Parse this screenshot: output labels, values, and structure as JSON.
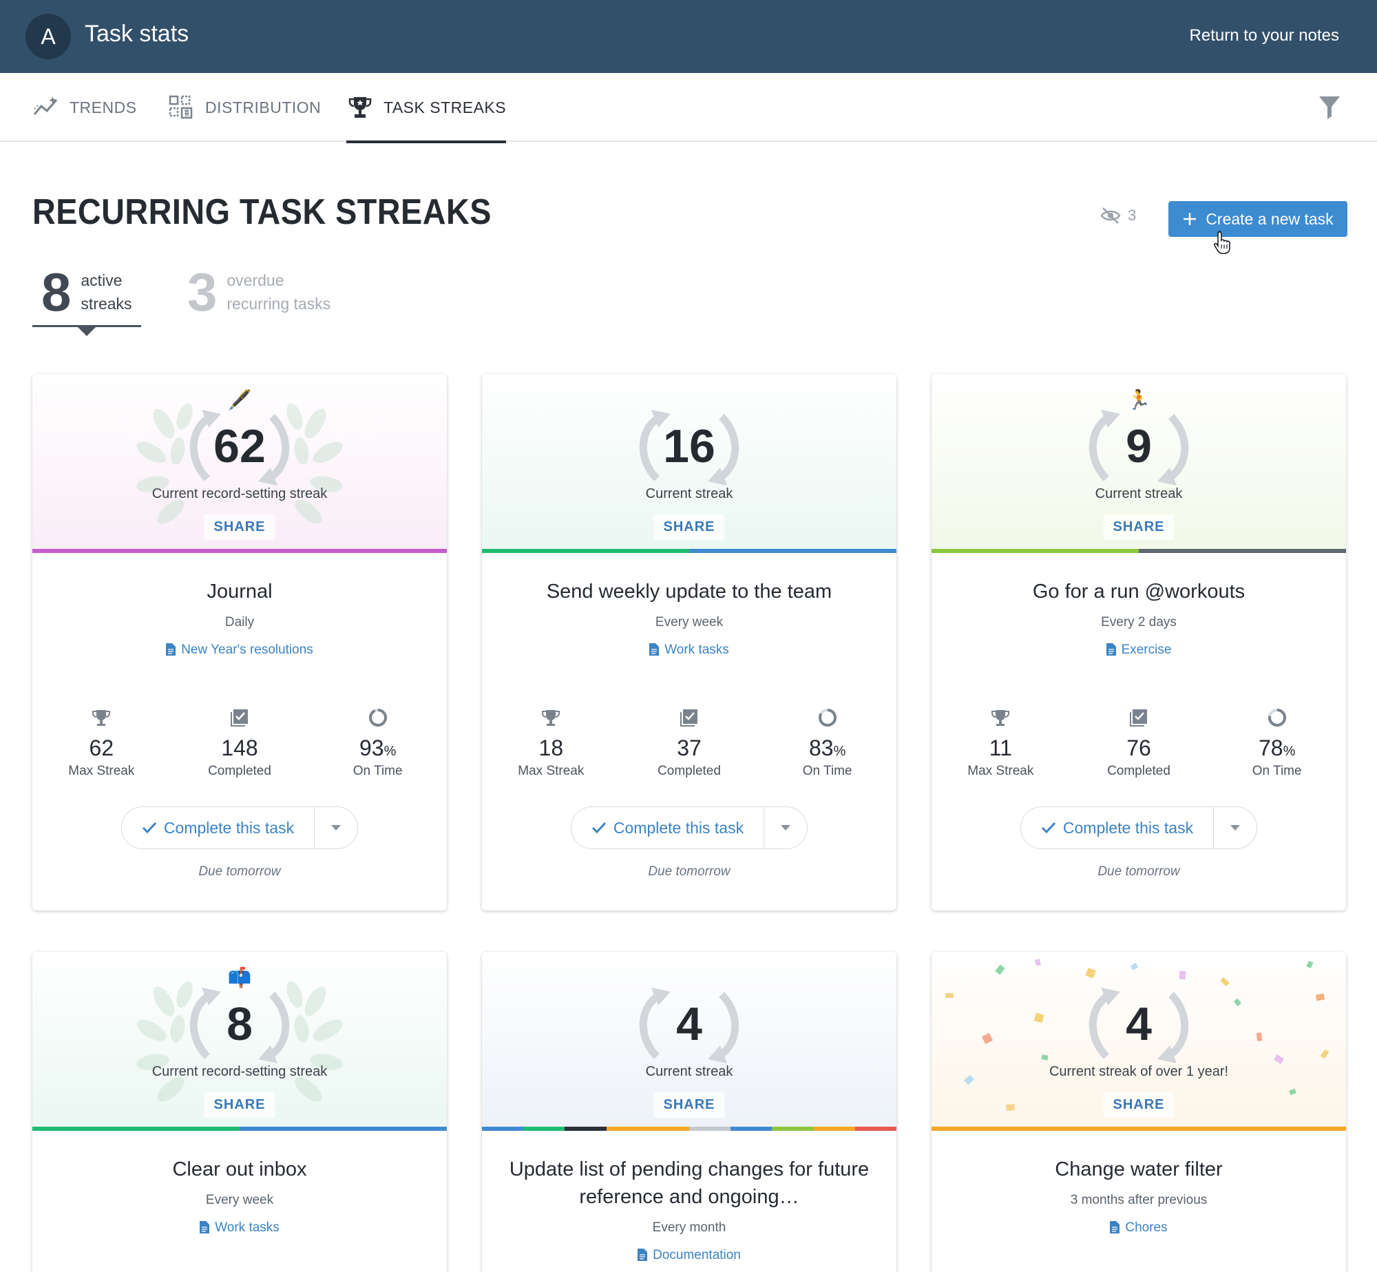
{
  "header": {
    "avatar_letter": "A",
    "title": "Task stats",
    "return_label": "Return to your notes"
  },
  "tabs": [
    {
      "label": "TRENDS",
      "icon": "trends-icon"
    },
    {
      "label": "DISTRIBUTION",
      "icon": "distribution-icon"
    },
    {
      "label": "TASK STREAKS",
      "icon": "trophy-icon",
      "active": true
    }
  ],
  "section": {
    "title": "RECURRING TASK STREAKS",
    "hidden_count": "3",
    "create_label": "Create a new task"
  },
  "counters": {
    "active": {
      "value": "8",
      "line1": "active",
      "line2": "streaks"
    },
    "overdue": {
      "value": "3",
      "line1": "overdue",
      "line2": "recurring tasks"
    }
  },
  "labels": {
    "share": "SHARE",
    "max_streak": "Max Streak",
    "completed": "Completed",
    "on_time": "On Time",
    "percent": "%",
    "complete_task": "Complete this task",
    "due": "Due tomorrow"
  },
  "cards": [
    {
      "streak": "62",
      "streak_label": "Current record-setting streak",
      "emoji": "🖋️",
      "title": "Journal",
      "frequency": "Daily",
      "note": "New Year's resolutions",
      "max_streak": "62",
      "completed": "148",
      "on_time": "93",
      "colors": [
        "#c85ccf"
      ],
      "bg": "#f9edf7"
    },
    {
      "streak": "16",
      "streak_label": "Current streak",
      "emoji": "",
      "title": "Send weekly update to the team",
      "frequency": "Every week",
      "note": "Work tasks",
      "max_streak": "18",
      "completed": "37",
      "on_time": "83",
      "colors": [
        "#1fbc71",
        "#3d8bd1"
      ],
      "bg": "#eaf7f2"
    },
    {
      "streak": "9",
      "streak_label": "Current streak",
      "emoji": "🏃",
      "title": "Go for a run @workouts",
      "frequency": "Every 2 days",
      "note": "Exercise",
      "max_streak": "11",
      "completed": "76",
      "on_time": "78",
      "colors": [
        "#8cc63f",
        "#5f6971"
      ],
      "bg": "#f2f8e8"
    },
    {
      "streak": "8",
      "streak_label": "Current record-setting streak",
      "emoji": "📫",
      "title": "Clear out inbox",
      "frequency": "Every week",
      "note": "Work tasks",
      "colors": [
        "#1fbc71",
        "#3d8bd1"
      ],
      "bg": "#eaf7f3"
    },
    {
      "streak": "4",
      "streak_label": "Current streak",
      "emoji": "",
      "title": "Update list of pending changes for future reference and ongoing…",
      "frequency": "Every month",
      "note": "Documentation",
      "colors": [
        "#3d8bd1",
        "#1fbc71",
        "#2b2f36",
        "#f5a623",
        "#f5a623",
        "#c3c7cc",
        "#3d8bd1",
        "#8cc63f",
        "#f5a623",
        "#e8594b"
      ],
      "bg": "#edf2f8"
    },
    {
      "streak": "4",
      "streak_label": "Current streak of over 1 year!",
      "emoji": "",
      "title": "Change water filter",
      "frequency": "3 months after previous",
      "note": "Chores",
      "colors": [
        "#f5a623"
      ],
      "bg": "#fdf5e8"
    }
  ]
}
